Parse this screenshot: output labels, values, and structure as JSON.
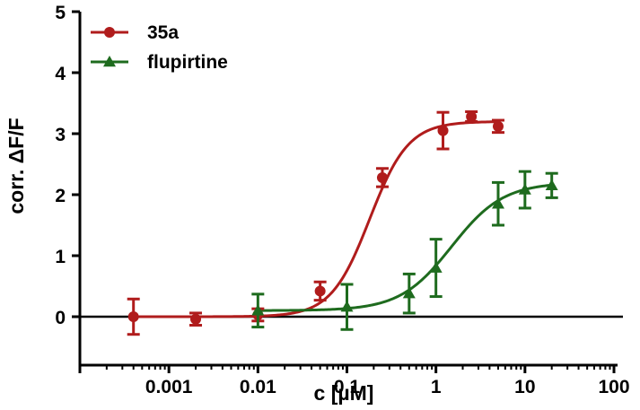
{
  "chart_data": {
    "type": "scatter",
    "xlabel": "c [µM]",
    "ylabel": "corr. ΔF/F",
    "x_scale": "log",
    "xlim": [
      0.0001,
      100
    ],
    "ylim": [
      0,
      5
    ],
    "x_ticks": [
      {
        "value": 0.001,
        "label": "0.001"
      },
      {
        "value": 0.01,
        "label": "0.01"
      },
      {
        "value": 0.1,
        "label": "0.1"
      },
      {
        "value": 1,
        "label": "1"
      },
      {
        "value": 10,
        "label": "10"
      },
      {
        "value": 100,
        "label": "100"
      }
    ],
    "y_ticks": [
      {
        "value": 0,
        "label": "0"
      },
      {
        "value": 1,
        "label": "1"
      },
      {
        "value": 2,
        "label": "2"
      },
      {
        "value": 3,
        "label": "3"
      },
      {
        "value": 4,
        "label": "4"
      },
      {
        "value": 5,
        "label": "5"
      }
    ],
    "grid": false,
    "legend_position": "top-left",
    "series": [
      {
        "name": "35a",
        "color": "#b01c1c",
        "marker": "circle",
        "x": [
          0.0004,
          0.002,
          0.01,
          0.05,
          0.25,
          1.2,
          2.5,
          5
        ],
        "y": [
          0.0,
          -0.04,
          0.03,
          0.42,
          2.28,
          3.05,
          3.28,
          3.12
        ],
        "err": [
          0.29,
          0.1,
          0.1,
          0.15,
          0.15,
          0.3,
          0.08,
          0.1
        ],
        "fit": {
          "bottom": 0.0,
          "top": 3.2,
          "ec50": 0.18,
          "hill": 2.0,
          "x_min": 0.0004,
          "x_max": 5
        }
      },
      {
        "name": "flupirtine",
        "color": "#1e6b1e",
        "marker": "triangle",
        "x": [
          0.01,
          0.1,
          0.5,
          1,
          5,
          10,
          20
        ],
        "y": [
          0.1,
          0.16,
          0.38,
          0.8,
          1.85,
          2.08,
          2.15
        ],
        "err": [
          0.27,
          0.37,
          0.32,
          0.47,
          0.35,
          0.3,
          0.2
        ],
        "fit": {
          "bottom": 0.1,
          "top": 2.2,
          "ec50": 1.5,
          "hill": 1.5,
          "x_min": 0.01,
          "x_max": 20
        }
      }
    ]
  }
}
